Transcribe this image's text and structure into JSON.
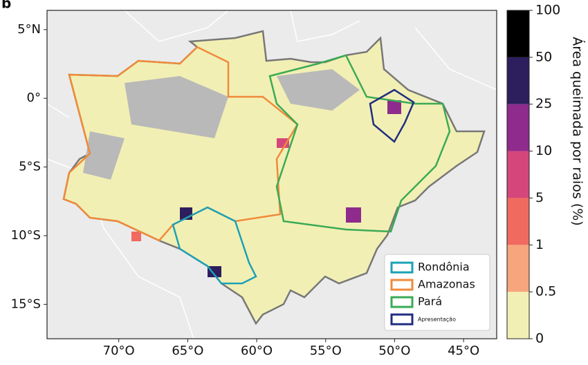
{
  "panel_label": "b",
  "map": {
    "xlim": [
      -75.2,
      -42.6
    ],
    "ylim": [
      -17.5,
      6.4
    ],
    "xticks": [
      {
        "value": -70,
        "label": "70°O"
      },
      {
        "value": -65,
        "label": "65°O"
      },
      {
        "value": -60,
        "label": "60°O"
      },
      {
        "value": -55,
        "label": "55°O"
      },
      {
        "value": -50,
        "label": "50°O"
      },
      {
        "value": -45,
        "label": "45°O"
      }
    ],
    "yticks": [
      {
        "value": 5,
        "label": "5°N"
      },
      {
        "value": 0,
        "label": "0°"
      },
      {
        "value": -5,
        "label": "5°S"
      },
      {
        "value": -10,
        "label": "10°S"
      },
      {
        "value": -15,
        "label": "15°S"
      }
    ]
  },
  "colorbar": {
    "label": "Área queimada por raios (%)",
    "ticks": [
      0,
      0.5,
      1,
      5,
      10,
      25,
      50,
      100
    ],
    "colors": [
      "#f2efb4",
      "#f7a57c",
      "#f06a60",
      "#d4477b",
      "#8e2b8c",
      "#2d1f5e",
      "#000000"
    ]
  },
  "legend": [
    {
      "name": "Rondônia",
      "color": "#1ba1b6"
    },
    {
      "name": "Amazonas",
      "color": "#ef8a3a"
    },
    {
      "name": "Pará",
      "color": "#3aaa55"
    },
    {
      "name": "Apresentação",
      "color": "#1f2d80"
    }
  ]
}
